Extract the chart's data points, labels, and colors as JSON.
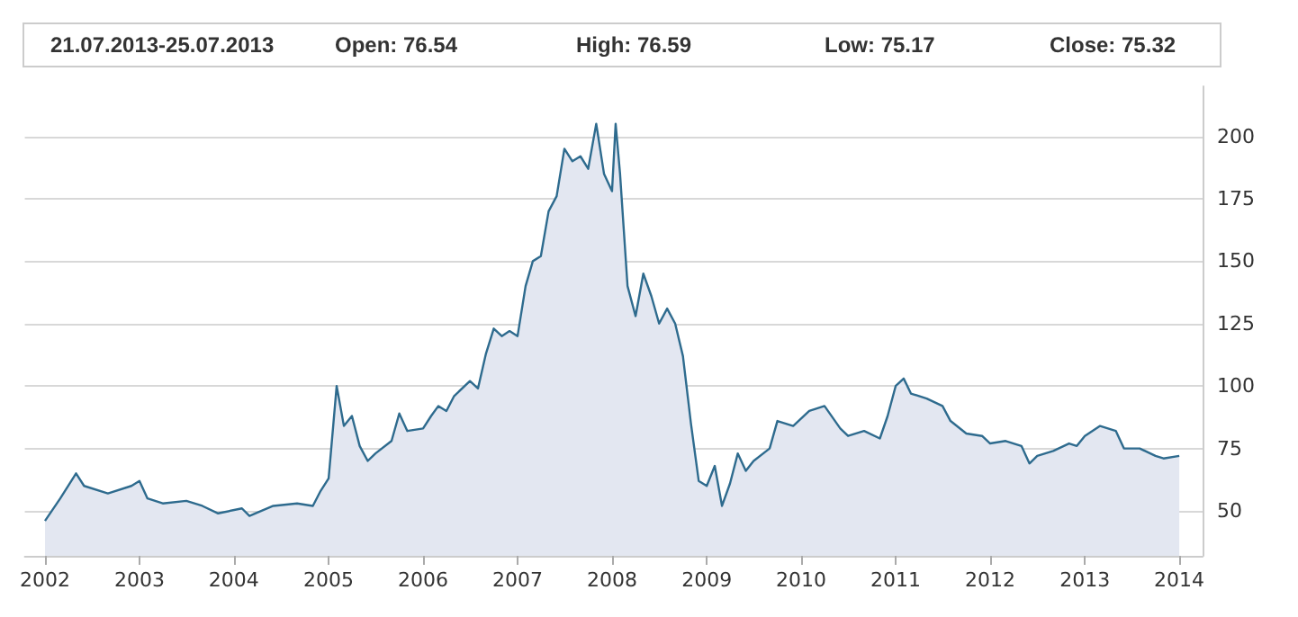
{
  "chart_data": {
    "type": "area",
    "annotations": [
      "21.07.2013-25.07.2013",
      "Open: 76.54",
      "High: 76.59",
      "Low: 75.17",
      "Close: 75.32"
    ],
    "x": [
      "2002-01",
      "2002-03",
      "2002-05",
      "2002-06",
      "2002-09",
      "2002-12",
      "2003-01",
      "2003-02",
      "2003-04",
      "2003-07",
      "2003-09",
      "2003-11",
      "2004-02",
      "2004-03",
      "2004-06",
      "2004-09",
      "2004-11",
      "2004-12",
      "2005-01",
      "2005-02",
      "2005-03",
      "2005-04",
      "2005-05",
      "2005-06",
      "2005-07",
      "2005-09",
      "2005-10",
      "2005-11",
      "2006-01",
      "2006-02",
      "2006-03",
      "2006-04",
      "2006-05",
      "2006-07",
      "2006-08",
      "2006-09",
      "2006-10",
      "2006-11",
      "2006-12",
      "2007-01",
      "2007-02",
      "2007-03",
      "2007-04",
      "2007-05",
      "2007-06",
      "2007-07",
      "2007-08",
      "2007-09",
      "2007-10",
      "2007-11",
      "2007-12",
      "2008-01",
      "2008-01-15",
      "2008-02",
      "2008-03",
      "2008-04",
      "2008-05",
      "2008-06",
      "2008-07",
      "2008-08",
      "2008-09",
      "2008-10",
      "2008-11",
      "2008-12",
      "2009-01",
      "2009-02",
      "2009-03",
      "2009-04",
      "2009-05",
      "2009-06",
      "2009-07",
      "2009-09",
      "2009-10",
      "2009-12",
      "2010-02",
      "2010-04",
      "2010-06",
      "2010-07",
      "2010-09",
      "2010-11",
      "2010-12",
      "2011-01",
      "2011-02",
      "2011-03",
      "2011-05",
      "2011-07",
      "2011-08",
      "2011-10",
      "2011-12",
      "2012-01",
      "2012-03",
      "2012-05",
      "2012-06",
      "2012-07",
      "2012-09",
      "2012-11",
      "2012-12",
      "2013-01",
      "2013-03",
      "2013-05",
      "2013-06",
      "2013-08",
      "2013-10",
      "2013-11",
      "2014-01"
    ],
    "series": [
      {
        "color": "#2e6b8e",
        "values": [
          46,
          55,
          65,
          60,
          57,
          60,
          62,
          55,
          53,
          54,
          52,
          49,
          51,
          48,
          52,
          53,
          52,
          58,
          63,
          100,
          84,
          88,
          76,
          70,
          73,
          78,
          89,
          82,
          83,
          88,
          92,
          90,
          96,
          102,
          99,
          113,
          123,
          120,
          122,
          120,
          140,
          150,
          152,
          170,
          176,
          195,
          190,
          192,
          187,
          205,
          185,
          178,
          205,
          185,
          140,
          128,
          145,
          136,
          125,
          131,
          125,
          112,
          85,
          62,
          60,
          68,
          52,
          61,
          73,
          66,
          70,
          75,
          86,
          84,
          90,
          92,
          83,
          80,
          82,
          79,
          88,
          100,
          103,
          97,
          95,
          92,
          86,
          81,
          80,
          77,
          78,
          76,
          69,
          72,
          74,
          77,
          76,
          80,
          84,
          82,
          75,
          75,
          72,
          71,
          72
        ]
      }
    ],
    "xlim": [
      "2001-10-15",
      "2014-04-01"
    ],
    "xticks": [
      "2002",
      "2003",
      "2004",
      "2005",
      "2006",
      "2007",
      "2008",
      "2009",
      "2010",
      "2011",
      "2012",
      "2013",
      "2014"
    ],
    "ylim": [
      32,
      220
    ],
    "yticks": [
      50,
      75,
      100,
      125,
      150,
      175,
      200
    ],
    "grid": "y"
  }
}
